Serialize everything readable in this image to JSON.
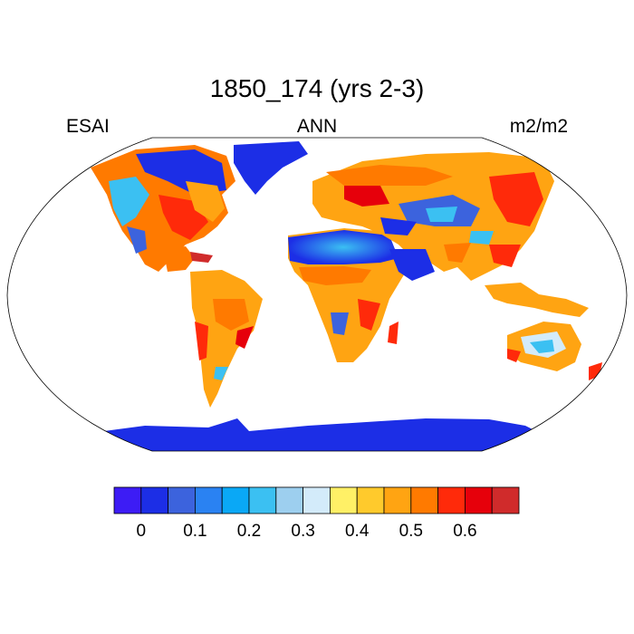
{
  "title": "1850_174 (yrs 2-3)",
  "left_label": "ESAI",
  "center_label": "ANN",
  "right_label": "m2/m2",
  "projection": "Robinson",
  "colorbar": {
    "colors": [
      "#3d1cf5",
      "#1c2ee6",
      "#3c63dd",
      "#2a82f2",
      "#0aa8f6",
      "#3bc0f2",
      "#9dcfef",
      "#d3ebfa",
      "#fff066",
      "#ffca2c",
      "#ffa412",
      "#ff7a00",
      "#ff2a0a",
      "#e6000b",
      "#d02b2b"
    ],
    "tick_labels": [
      "0",
      "0.1",
      "0.2",
      "0.3",
      "0.4",
      "0.5",
      "0.6"
    ]
  }
}
